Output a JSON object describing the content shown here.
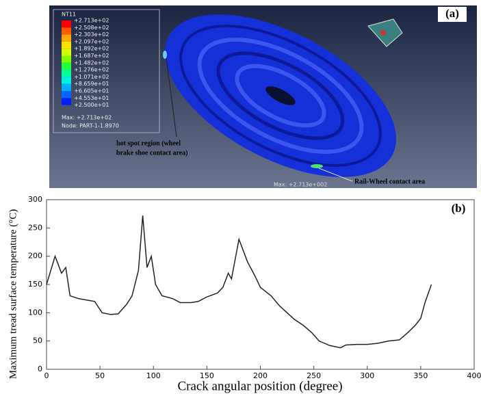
{
  "figure_a": {
    "panel_label": "(a)",
    "legend_title": "NT11",
    "legend_labels": [
      "+2.713e+02",
      "+2.508e+02",
      "+2.303e+02",
      "+2.097e+02",
      "+1.892e+02",
      "+1.687e+02",
      "+1.482e+02",
      "+1.276e+02",
      "+1.071e+02",
      "+8.659e+01",
      "+6.605e+01",
      "+4.553e+01",
      "+2.500e+01"
    ],
    "legend_max": "Max: +2.713e+02",
    "legend_node": "Node: PART-1-1.8970",
    "hot_spot_note": [
      "hot spot region (wheel",
      "brake shoe contact area)"
    ],
    "contact_note": "Rail-Wheel contact area",
    "max_marker": "Max: +2.713e+002"
  },
  "chart_data": {
    "type": "line",
    "panel_label": "(b)",
    "x_label": "Crack angular position (degree)",
    "y_label": "Maximum tread surface temperature (°C)",
    "xlim": [
      0,
      400
    ],
    "xticks": [
      0,
      50,
      100,
      150,
      200,
      250,
      300,
      350,
      400
    ],
    "ylim": [
      0,
      300
    ],
    "yticks": [
      0,
      50,
      100,
      150,
      200,
      250,
      300
    ],
    "color": "#222222",
    "x": [
      0,
      8,
      14,
      18,
      22,
      30,
      45,
      52,
      60,
      67,
      75,
      80,
      86,
      90,
      94,
      98,
      102,
      108,
      118,
      125,
      135,
      142,
      150,
      160,
      165,
      170,
      173,
      180,
      188,
      195,
      200,
      210,
      218,
      225,
      232,
      240,
      248,
      255,
      265,
      275,
      280,
      290,
      300,
      310,
      320,
      330,
      338,
      345,
      350,
      354,
      360
    ],
    "values": [
      150,
      200,
      170,
      180,
      130,
      125,
      120,
      100,
      97,
      98,
      115,
      130,
      175,
      272,
      180,
      200,
      150,
      130,
      125,
      118,
      118,
      120,
      128,
      135,
      145,
      170,
      160,
      230,
      190,
      165,
      145,
      130,
      112,
      100,
      88,
      78,
      65,
      50,
      42,
      38,
      43,
      44,
      44,
      46,
      50,
      52,
      65,
      78,
      90,
      118,
      150
    ]
  }
}
